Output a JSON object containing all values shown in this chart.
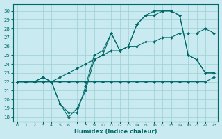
{
  "xlabel": "Humidex (Indice chaleur)",
  "background_color": "#c8eaf0",
  "line_color": "#006868",
  "grid_color": "#9ecfcf",
  "xlim": [
    -0.5,
    23.5
  ],
  "ylim": [
    17.5,
    30.8
  ],
  "yticks": [
    18,
    19,
    20,
    21,
    22,
    23,
    24,
    25,
    26,
    27,
    28,
    29,
    30
  ],
  "xticks": [
    0,
    1,
    2,
    3,
    4,
    5,
    6,
    7,
    8,
    9,
    10,
    11,
    12,
    13,
    14,
    15,
    16,
    17,
    18,
    19,
    20,
    21,
    22,
    23
  ],
  "xtick_labels": [
    "0",
    "1",
    "2",
    "3",
    "4",
    "5",
    "6",
    "7",
    "8",
    "9",
    "10",
    "11",
    "12",
    "13",
    "14",
    "15",
    "16",
    "17",
    "18",
    "19",
    "20",
    "21",
    "22",
    "23"
  ],
  "series": [
    {
      "x": [
        0,
        1,
        2,
        3,
        4,
        5,
        6,
        7,
        8,
        9,
        10,
        11,
        12,
        13,
        14,
        15,
        16,
        17,
        18,
        19,
        20,
        21,
        22,
        23
      ],
      "y": [
        22,
        22,
        22,
        22,
        22,
        22,
        22,
        22,
        22,
        22,
        22,
        22,
        22,
        22,
        22,
        22,
        22,
        22,
        22,
        22,
        22,
        22,
        22,
        22.5
      ]
    },
    {
      "x": [
        0,
        1,
        2,
        3,
        4,
        5,
        6,
        7,
        8,
        9,
        10,
        11,
        12,
        13,
        14,
        15,
        16,
        17,
        18,
        19,
        20,
        21,
        22,
        23
      ],
      "y": [
        22,
        22,
        22,
        22,
        22,
        22.5,
        23,
        23.5,
        24,
        24.5,
        25,
        25.5,
        25.5,
        26,
        26,
        26.5,
        26.5,
        27,
        27,
        27.5,
        27.5,
        27.5,
        28,
        27.5
      ]
    },
    {
      "x": [
        0,
        1,
        2,
        3,
        4,
        5,
        6,
        7,
        8,
        9,
        10,
        11,
        12,
        13,
        14,
        15,
        16,
        17,
        18,
        19,
        20,
        21,
        22,
        23
      ],
      "y": [
        22,
        22,
        22,
        22.5,
        22,
        19.5,
        18,
        19,
        21,
        24.5,
        25,
        27.5,
        25.5,
        26,
        28.5,
        29.5,
        29.5,
        30,
        30,
        29.5,
        25,
        24.5,
        23,
        23
      ]
    },
    {
      "x": [
        0,
        1,
        2,
        3,
        4,
        5,
        6,
        7,
        8,
        9,
        10,
        11,
        12,
        13,
        14,
        15,
        16,
        17,
        18,
        19,
        20,
        21,
        22,
        23
      ],
      "y": [
        22,
        22,
        22,
        22.5,
        22,
        19.5,
        18.5,
        18.5,
        21.5,
        25,
        25.5,
        27.5,
        25.5,
        26,
        28.5,
        29.5,
        30,
        30,
        30,
        29.5,
        25,
        24.5,
        23,
        23
      ]
    }
  ]
}
